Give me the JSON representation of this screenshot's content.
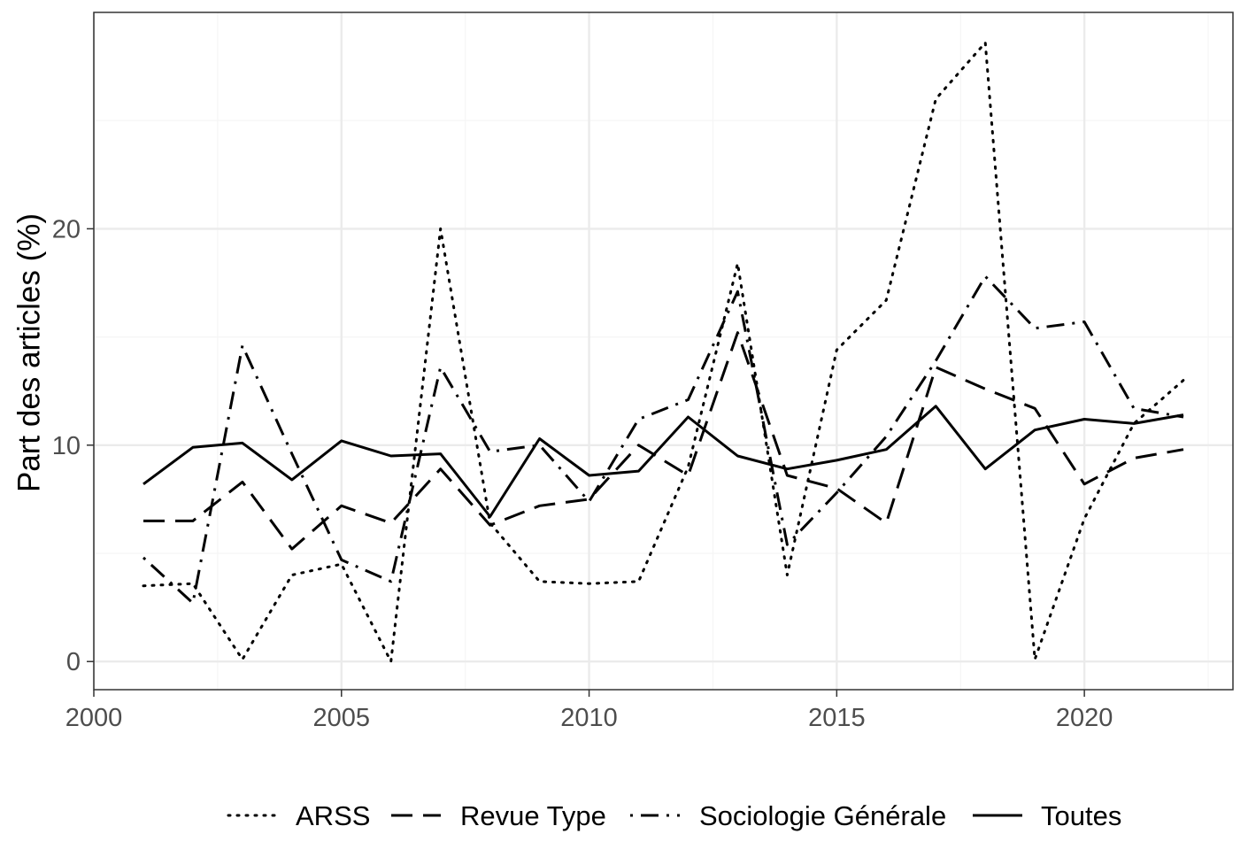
{
  "chart_data": {
    "type": "line",
    "title": "",
    "xlabel": "",
    "ylabel": "Part des articles (%)",
    "xlim": [
      2000,
      2023
    ],
    "ylim": [
      -1.3,
      30
    ],
    "x_ticks": [
      2000,
      2005,
      2010,
      2015,
      2020
    ],
    "x_tick_labels": [
      "2000",
      "2005",
      "2010",
      "2015",
      "2020"
    ],
    "y_ticks": [
      0,
      10,
      20
    ],
    "y_tick_labels": [
      "0",
      "10",
      "20"
    ],
    "x": [
      2001,
      2002,
      2003,
      2004,
      2005,
      2006,
      2007,
      2008,
      2009,
      2010,
      2011,
      2012,
      2013,
      2014,
      2015,
      2016,
      2017,
      2018,
      2019,
      2020,
      2021,
      2022
    ],
    "series": [
      {
        "name": "ARSS",
        "dash": "dotted",
        "values": [
          3.5,
          3.6,
          0.1,
          4.0,
          4.5,
          0.0,
          20.0,
          6.4,
          3.7,
          3.6,
          3.7,
          9.0,
          18.4,
          4.0,
          14.4,
          16.7,
          26.0,
          28.6,
          0.1,
          6.6,
          11.0,
          13.0
        ]
      },
      {
        "name": "Revue Type",
        "dash": "dashed",
        "values": [
          6.5,
          6.5,
          8.3,
          5.2,
          7.2,
          6.4,
          8.9,
          6.3,
          7.2,
          7.5,
          10.0,
          8.6,
          15.2,
          8.6,
          8.0,
          6.4,
          13.6,
          12.6,
          11.7,
          8.2,
          9.4,
          9.8
        ]
      },
      {
        "name": "Sociologie Générale",
        "dash": "dotdash",
        "values": [
          4.8,
          2.7,
          14.6,
          9.6,
          4.7,
          3.7,
          13.6,
          9.7,
          10.0,
          7.4,
          11.2,
          12.1,
          17.1,
          5.4,
          7.8,
          10.4,
          13.9,
          17.8,
          15.4,
          15.7,
          11.7,
          11.3
        ]
      },
      {
        "name": "Toutes",
        "dash": "solid",
        "values": [
          8.2,
          9.9,
          10.1,
          8.4,
          10.2,
          9.5,
          9.6,
          6.7,
          10.3,
          8.6,
          8.8,
          11.3,
          9.5,
          8.9,
          9.3,
          9.8,
          11.8,
          8.9,
          10.7,
          11.2,
          11.0,
          11.4
        ]
      }
    ],
    "grid": true,
    "legend_position": "bottom",
    "colors": {
      "line": "#000000",
      "grid_major": "#ebebeb",
      "grid_minor": "#f5f5f5",
      "panel_border": "#333333",
      "tick_text": "#4d4d4d"
    }
  }
}
